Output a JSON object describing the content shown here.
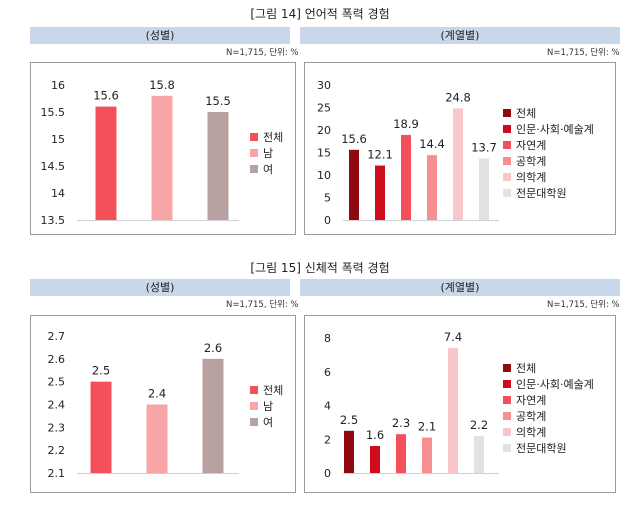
{
  "figures": [
    {
      "title": "[그림 14] 언어적 폭력 경험",
      "left_header": "(성별)",
      "right_header": "(계열별)",
      "left_note": "N=1,715, 단위: %",
      "right_note": "N=1,715, 단위: %"
    },
    {
      "title": "[그림 15] 신체적 폭력 경험",
      "left_header": "(성별)",
      "right_header": "(계열별)",
      "left_note": "N=1,715, 단위: %",
      "right_note": "N=1,715, 단위: %"
    }
  ],
  "chart_data": [
    {
      "type": "bar",
      "categories": [
        "전체",
        "남",
        "여"
      ],
      "values": [
        15.6,
        15.8,
        15.5
      ],
      "colors": [
        "#f4505a",
        "#f7a5a7",
        "#b8a1a1"
      ],
      "ylim": [
        13.5,
        16
      ],
      "yticks": [
        "13.5",
        "14",
        "14.5",
        "15",
        "15.5",
        "16"
      ],
      "grid": false,
      "legend": "right"
    },
    {
      "type": "bar",
      "categories": [
        "전체",
        "인문·사회·예술계",
        "자연계",
        "공학계",
        "의학계",
        "전문대학원"
      ],
      "values": [
        15.6,
        12.1,
        18.9,
        14.4,
        24.8,
        13.7
      ],
      "colors": [
        "#8e0a0e",
        "#cf0c1b",
        "#f4505a",
        "#f68f92",
        "#f9c7c9",
        "#e2e2e2"
      ],
      "ylim": [
        0,
        30
      ],
      "yticks": [
        "0",
        "5",
        "10",
        "15",
        "20",
        "25",
        "30"
      ],
      "grid": false,
      "legend": "right"
    },
    {
      "type": "bar",
      "categories": [
        "전체",
        "남",
        "여"
      ],
      "values": [
        2.5,
        2.4,
        2.6
      ],
      "colors": [
        "#f4505a",
        "#f7a5a7",
        "#b8a1a1"
      ],
      "ylim": [
        2.1,
        2.7
      ],
      "yticks": [
        "2.1",
        "2.2",
        "2.3",
        "2.4",
        "2.5",
        "2.6",
        "2.7"
      ],
      "grid": false,
      "legend": "right"
    },
    {
      "type": "bar",
      "categories": [
        "전체",
        "인문·사회·예술계",
        "자연계",
        "공학계",
        "의학계",
        "전문대학원"
      ],
      "values": [
        2.5,
        1.6,
        2.3,
        2.1,
        7.4,
        2.2
      ],
      "colors": [
        "#8e0a0e",
        "#cf0c1b",
        "#f4505a",
        "#f68f92",
        "#f9c7c9",
        "#e2e2e2"
      ],
      "ylim": [
        0,
        8
      ],
      "yticks": [
        "0",
        "2",
        "4",
        "6",
        "8"
      ],
      "grid": false,
      "legend": "right"
    }
  ]
}
